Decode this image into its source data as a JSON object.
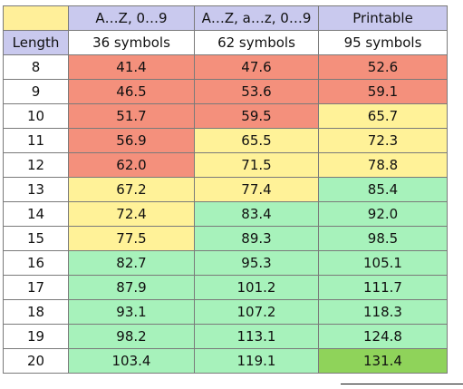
{
  "table": {
    "header": {
      "corner": "",
      "col1": "A…Z, 0…9",
      "col2": "A…Z, a…z, 0…9",
      "col3": "Printable"
    },
    "subheader": {
      "length_label": "Length",
      "col1": "36 symbols",
      "col2": "62 symbols",
      "col3": "95 symbols"
    },
    "rows": [
      {
        "length": "8",
        "c1": "41.4",
        "c2": "47.6",
        "c3": "52.6"
      },
      {
        "length": "9",
        "c1": "46.5",
        "c2": "53.6",
        "c3": "59.1"
      },
      {
        "length": "10",
        "c1": "51.7",
        "c2": "59.5",
        "c3": "65.7"
      },
      {
        "length": "11",
        "c1": "56.9",
        "c2": "65.5",
        "c3": "72.3"
      },
      {
        "length": "12",
        "c1": "62.0",
        "c2": "71.5",
        "c3": "78.8"
      },
      {
        "length": "13",
        "c1": "67.2",
        "c2": "77.4",
        "c3": "85.4"
      },
      {
        "length": "14",
        "c1": "72.4",
        "c2": "83.4",
        "c3": "92.0"
      },
      {
        "length": "15",
        "c1": "77.5",
        "c2": "89.3",
        "c3": "98.5"
      },
      {
        "length": "16",
        "c1": "82.7",
        "c2": "95.3",
        "c3": "105.1"
      },
      {
        "length": "17",
        "c1": "87.9",
        "c2": "101.2",
        "c3": "111.7"
      },
      {
        "length": "18",
        "c1": "93.1",
        "c2": "107.2",
        "c3": "118.3"
      },
      {
        "length": "19",
        "c1": "98.2",
        "c2": "113.1",
        "c3": "124.8"
      },
      {
        "length": "20",
        "c1": "103.4",
        "c2": "119.1",
        "c3": "131.4"
      }
    ],
    "colors": {
      "red": "#f4907c",
      "yellow": "#fff298",
      "green": "#a7f2bb",
      "dark_green": "#8fd35a",
      "header": "#c9c9ee",
      "corner": "#ffef99"
    }
  }
}
